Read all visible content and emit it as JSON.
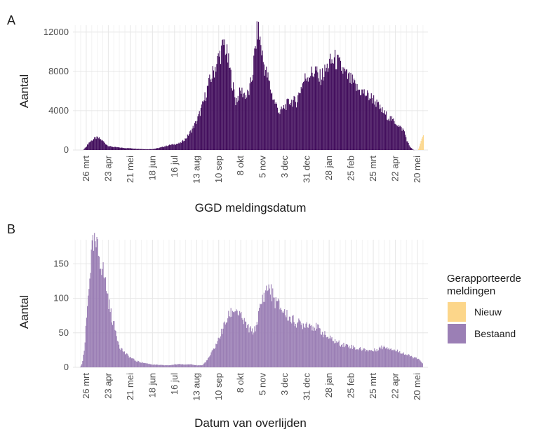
{
  "colors": {
    "nieuw": "#fcd68a",
    "bestaand_a": "#44105e",
    "bestaand_b": "#9b7fb5",
    "grid_major": "#e6e6e6",
    "grid_minor": "#f2f2f2"
  },
  "legend": {
    "title_line1": "Gerapporteerde",
    "title_line2": "meldingen",
    "items": [
      {
        "label": "Nieuw",
        "color": "#fcd68a"
      },
      {
        "label": "Bestaand",
        "color": "#9b7fb5"
      }
    ],
    "placement": "right"
  },
  "chart_data": [
    {
      "type": "bar",
      "panel_label": "A",
      "xlabel": "GGD meldingsdatum",
      "ylabel": "Aantal",
      "ylim": [
        0,
        12700
      ],
      "y_ticks": [
        0,
        4000,
        8000,
        12000
      ],
      "y_tick_labels": [
        "0",
        "4000",
        "8000",
        "12000"
      ],
      "x_tick_labels": [
        "26 mrt",
        "23 apr",
        "21 mei",
        "18 jun",
        "16 jul",
        "13 aug",
        "10 sep",
        "8 okt",
        "5 nov",
        "3 dec",
        "31 dec",
        "28 jan",
        "25 feb",
        "25 mrt",
        "22 apr",
        "20 mei"
      ],
      "x_range_weeks": [
        -2.4,
        61.9
      ],
      "series": [
        {
          "name": "Bestaand",
          "x_week": [
            -0.6,
            0,
            0.5,
            1,
            1.5,
            2,
            2.5,
            3,
            3.5,
            4,
            5,
            6,
            7,
            8,
            9,
            10,
            11,
            12,
            13,
            14,
            15,
            16,
            17,
            18,
            19,
            20,
            21,
            22,
            23,
            24,
            25,
            26,
            27,
            28,
            29,
            29.5,
            30,
            30.5,
            31,
            31.5,
            32,
            32.5,
            33,
            33.5,
            34,
            34.5,
            35,
            36,
            37,
            38,
            38.5,
            39,
            39.5,
            40,
            40.5,
            41,
            41.5,
            42,
            43,
            44,
            45,
            46,
            47,
            48,
            48.5,
            49,
            50,
            51,
            52,
            53,
            54,
            55,
            56,
            56.5,
            57,
            57.5,
            58,
            58.5,
            59,
            59.3
          ],
          "y": [
            0,
            400,
            800,
            1000,
            1200,
            1250,
            1100,
            900,
            600,
            400,
            300,
            250,
            200,
            180,
            130,
            100,
            80,
            100,
            200,
            350,
            500,
            600,
            700,
            1200,
            2000,
            3000,
            4500,
            6500,
            8000,
            9500,
            10900,
            8000,
            5000,
            6000,
            5500,
            6000,
            7500,
            10000,
            12400,
            11000,
            9000,
            8000,
            7000,
            5800,
            5000,
            4400,
            3800,
            4500,
            5000,
            4900,
            5800,
            6600,
            7200,
            7600,
            7800,
            7800,
            8200,
            7200,
            7800,
            8800,
            9200,
            8500,
            7600,
            7000,
            6600,
            6200,
            5900,
            5500,
            5200,
            4300,
            3700,
            3200,
            2800,
            2500,
            2200,
            2000,
            1000,
            400,
            100,
            0
          ]
        },
        {
          "name": "Nieuw",
          "x_week": [
            60,
            60.2,
            60.5,
            60.8,
            61
          ],
          "y": [
            0,
            200,
            800,
            1300,
            1500
          ]
        }
      ]
    },
    {
      "type": "bar",
      "panel_label": "B",
      "xlabel": "Datum van overlijden",
      "ylabel": "Aantal",
      "ylim": [
        0,
        185
      ],
      "y_ticks": [
        0,
        50,
        100,
        150
      ],
      "y_tick_labels": [
        "0",
        "50",
        "100",
        "150"
      ],
      "x_tick_labels": [
        "26 mrt",
        "23 apr",
        "21 mei",
        "18 jun",
        "16 jul",
        "13 aug",
        "10 sep",
        "8 okt",
        "5 nov",
        "3 dec",
        "31 dec",
        "28 jan",
        "25 feb",
        "25 mrt",
        "22 apr",
        "20 mei"
      ],
      "x_range_weeks": [
        -2.4,
        61.9
      ],
      "series": [
        {
          "name": "Bestaand",
          "x_week": [
            -1.2,
            -0.8,
            -0.4,
            0,
            0.5,
            1,
            1.5,
            2,
            2.5,
            3,
            3.5,
            4,
            4.5,
            5,
            5.5,
            6,
            7,
            8,
            9,
            10,
            12,
            14,
            15,
            16,
            17,
            18,
            19,
            20,
            21,
            22,
            23,
            24,
            25,
            26,
            27,
            28,
            29,
            29.5,
            30,
            30.5,
            31,
            31.5,
            32,
            33,
            34,
            35,
            36,
            37,
            38,
            39,
            40,
            41,
            42,
            43,
            44,
            45,
            46,
            47,
            48,
            49,
            50,
            51,
            52,
            53,
            54,
            55,
            56,
            57,
            58,
            59,
            60,
            60.5,
            60.9
          ],
          "y": [
            0,
            5,
            25,
            70,
            130,
            170,
            178,
            170,
            155,
            140,
            120,
            95,
            75,
            60,
            45,
            30,
            20,
            14,
            9,
            7,
            4,
            3,
            3,
            4,
            5,
            4,
            4,
            3,
            3,
            12,
            26,
            42,
            62,
            78,
            85,
            72,
            60,
            55,
            52,
            54,
            70,
            88,
            102,
            118,
            98,
            88,
            78,
            70,
            65,
            62,
            64,
            60,
            56,
            48,
            42,
            38,
            34,
            32,
            30,
            27,
            26,
            25,
            24,
            28,
            30,
            28,
            24,
            22,
            18,
            15,
            12,
            9,
            6
          ]
        },
        {
          "name": "Nieuw",
          "x_week": [],
          "y": []
        }
      ]
    }
  ]
}
